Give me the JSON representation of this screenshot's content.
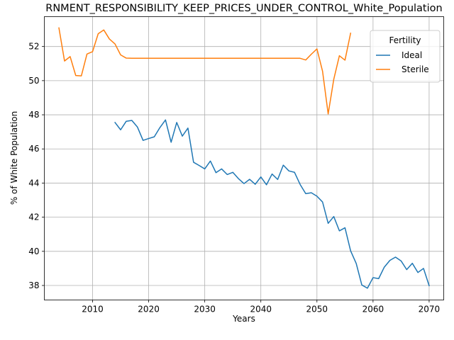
{
  "chart_data": {
    "type": "line",
    "title": "RNMENT_RESPONSIBILITY_KEEP_PRICES_UNDER_CONTROL_White_Population",
    "xlabel": "Years",
    "ylabel": "% of White Population",
    "xlim": [
      2001.4,
      2072.6
    ],
    "ylim": [
      37.15,
      53.75
    ],
    "x_ticks": [
      2010,
      2020,
      2030,
      2040,
      2050,
      2060,
      2070
    ],
    "y_ticks": [
      38,
      40,
      42,
      44,
      46,
      48,
      50,
      52
    ],
    "grid": true,
    "legend": {
      "title": "Fertility",
      "placement": "top-right"
    },
    "series": [
      {
        "name": "Ideal",
        "color": "#1f77b4",
        "x": [
          2014,
          2015,
          2016,
          2017,
          2018,
          2019,
          2020,
          2021,
          2022,
          2023,
          2024,
          2025,
          2026,
          2027,
          2028,
          2029,
          2030,
          2031,
          2032,
          2033,
          2034,
          2035,
          2036,
          2037,
          2038,
          2039,
          2040,
          2041,
          2042,
          2043,
          2044,
          2045,
          2046,
          2047,
          2048,
          2049,
          2050,
          2051,
          2052,
          2053,
          2054,
          2055,
          2056,
          2057,
          2058,
          2059,
          2060,
          2061,
          2062,
          2063,
          2064,
          2065,
          2066,
          2067,
          2068,
          2069,
          2070
        ],
        "values": [
          47.55,
          47.12,
          47.62,
          47.67,
          47.28,
          46.5,
          46.61,
          46.71,
          47.25,
          47.7,
          46.39,
          47.55,
          46.75,
          47.22,
          45.22,
          45.03,
          44.83,
          45.29,
          44.61,
          44.83,
          44.5,
          44.63,
          44.26,
          43.97,
          44.22,
          43.93,
          44.36,
          43.9,
          44.53,
          44.21,
          45.05,
          44.71,
          44.63,
          43.92,
          43.38,
          43.43,
          43.23,
          42.89,
          41.64,
          42.04,
          41.2,
          41.38,
          40.03,
          39.29,
          38.03,
          37.84,
          38.46,
          38.4,
          39.07,
          39.47,
          39.66,
          39.44,
          38.93,
          39.3,
          38.76,
          39.0,
          37.99
        ]
      },
      {
        "name": "Sterile",
        "color": "#ff7f0e",
        "x": [
          2004,
          2005,
          2006,
          2007,
          2008,
          2009,
          2010,
          2011,
          2012,
          2013,
          2014,
          2015,
          2016,
          2017,
          2018,
          2019,
          2020,
          2021,
          2022,
          2023,
          2024,
          2025,
          2026,
          2027,
          2028,
          2029,
          2030,
          2031,
          2032,
          2033,
          2034,
          2035,
          2036,
          2037,
          2038,
          2039,
          2040,
          2041,
          2042,
          2043,
          2044,
          2045,
          2046,
          2047,
          2048,
          2049,
          2050,
          2051,
          2052,
          2053,
          2054,
          2055,
          2056
        ],
        "values": [
          53.09,
          51.15,
          51.41,
          50.3,
          50.28,
          51.56,
          51.7,
          52.75,
          52.97,
          52.44,
          52.15,
          51.51,
          51.32,
          51.31,
          51.31,
          51.31,
          51.31,
          51.31,
          51.31,
          51.31,
          51.31,
          51.31,
          51.31,
          51.31,
          51.31,
          51.31,
          51.31,
          51.31,
          51.31,
          51.31,
          51.31,
          51.31,
          51.31,
          51.31,
          51.31,
          51.31,
          51.31,
          51.31,
          51.31,
          51.31,
          51.31,
          51.31,
          51.31,
          51.31,
          51.21,
          51.55,
          51.86,
          50.55,
          48.05,
          50.08,
          51.46,
          51.2,
          52.78
        ]
      }
    ]
  }
}
